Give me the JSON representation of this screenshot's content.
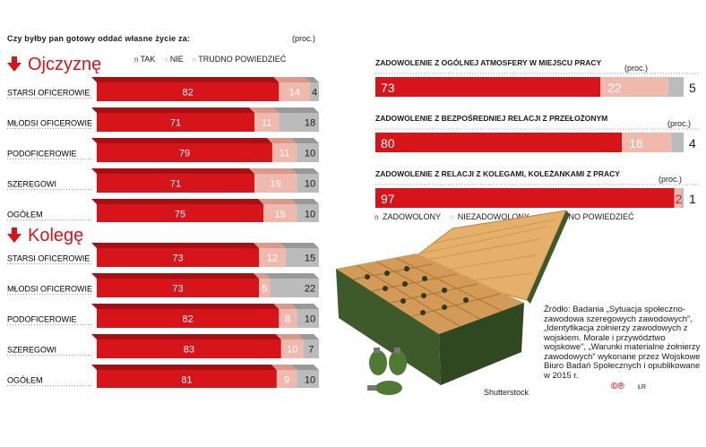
{
  "question": "Czy byłby pan gotowy oddać własne życie za:",
  "unit": "(proc.)",
  "legend_left": [
    {
      "label": "TAK",
      "color": "#d7141a"
    },
    {
      "label": "NIE",
      "color": "#f0b9ad"
    },
    {
      "label": "TRUDNO POWIEDZIEĆ",
      "color": "#bbbbbb"
    }
  ],
  "legend_right": [
    {
      "label": "ZADOWOLONY",
      "color": "#d7141a"
    },
    {
      "label": "NIEZADOWOLONY",
      "color": "#f0b9ad"
    },
    {
      "label": "TRUDNO POWIEDZIEĆ",
      "color": "#bbbbbb"
    }
  ],
  "source": "Źródło: Badania „Sytuacja społeczno-zawodowa szeregowych zawodowych”, „Identyfikacja żołnierzy zawodowych z wojskiem. Morale i przywództwo wojskowe”, „Warunki materialne żołnierzy zawodowych” wykonane przez Wojskowe Biuro Badań Społecznych i opublikowane w 2015 r.",
  "photo_credit": "Shutterstock",
  "logo_text": "©℗",
  "author": "ŁR",
  "colors": {
    "yes": "#d7141a",
    "no": "#f0b9ad",
    "unsure": "#bbbbbb"
  },
  "chart_data": [
    {
      "type": "bar",
      "stacked": true,
      "orientation": "horizontal",
      "title": "Ojczyznę",
      "categories": [
        "STARSI OFICEROWIE",
        "MŁODSI OFICEROWIE",
        "PODOFICEROWIE",
        "SZEREGOWI",
        "OGÓŁEM"
      ],
      "series": [
        {
          "name": "TAK",
          "values": [
            82,
            71,
            79,
            71,
            75
          ]
        },
        {
          "name": "NIE",
          "values": [
            14,
            11,
            11,
            19,
            15
          ]
        },
        {
          "name": "TRUDNO POWIEDZIEĆ",
          "values": [
            4,
            18,
            10,
            10,
            10
          ]
        }
      ]
    },
    {
      "type": "bar",
      "stacked": true,
      "orientation": "horizontal",
      "title": "Kolegę",
      "categories": [
        "STARSI OFICEROWIE",
        "MŁODSI OFICEROWIE",
        "PODOFICEROWIE",
        "SZEREGOWI",
        "OGÓŁEM"
      ],
      "series": [
        {
          "name": "TAK",
          "values": [
            73,
            73,
            82,
            83,
            81
          ]
        },
        {
          "name": "NIE",
          "values": [
            12,
            5,
            8,
            10,
            9
          ]
        },
        {
          "name": "TRUDNO POWIEDZIEĆ",
          "values": [
            15,
            22,
            10,
            7,
            10
          ]
        }
      ]
    },
    {
      "type": "bar",
      "stacked": true,
      "orientation": "horizontal",
      "categories": [
        "Zadowolenie z ogólnej atmosfery w miejscu pracy",
        "Zadowolenie z bezpośredniej relacji z przełożonym",
        "Zadowolenie z relacji z kolegami, koleżankami z pracy"
      ],
      "series": [
        {
          "name": "ZADOWOLONY",
          "values": [
            73,
            80,
            97
          ]
        },
        {
          "name": "NIEZADOWOLONY",
          "values": [
            22,
            16,
            2
          ]
        },
        {
          "name": "TRUDNO POWIEDZIEĆ",
          "values": [
            5,
            4,
            1
          ]
        }
      ]
    }
  ]
}
